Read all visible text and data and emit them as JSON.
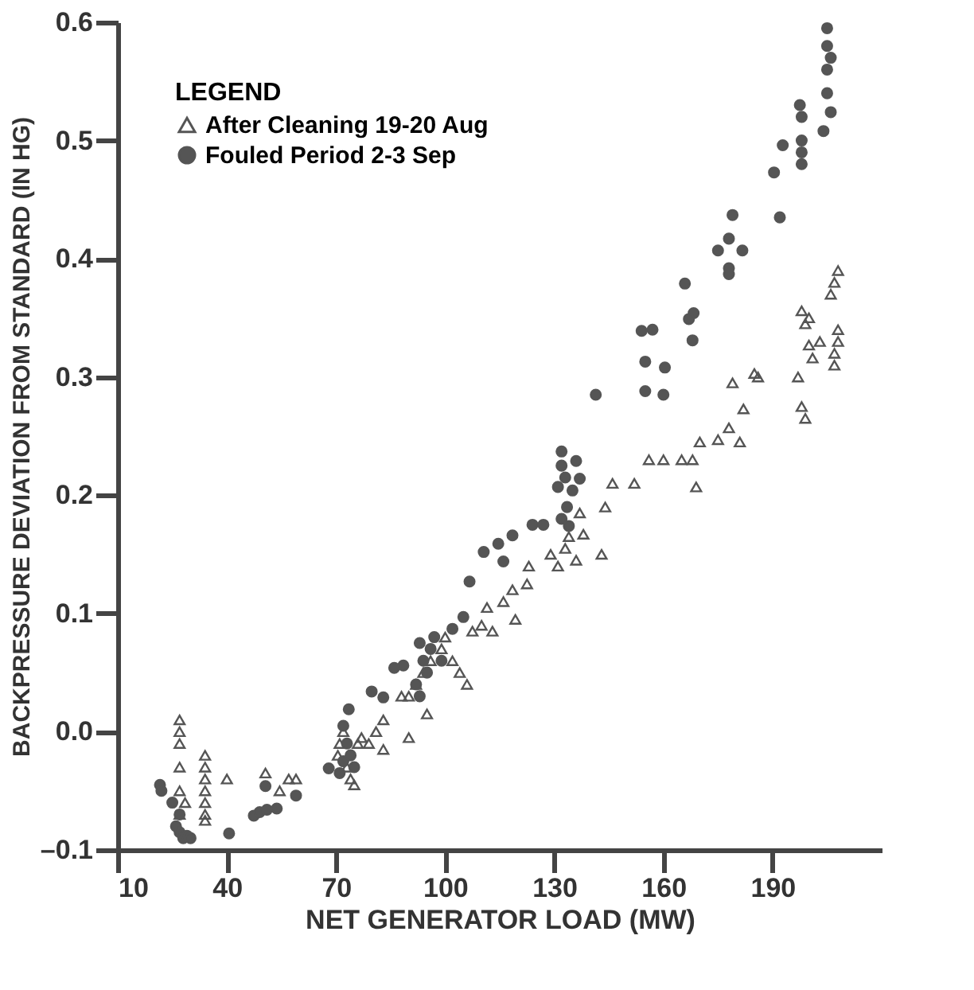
{
  "chart_data": {
    "type": "scatter",
    "xlabel": "NET GENERATOR LOAD (MW)",
    "ylabel": "BACKPRESSURE DEVIATION FROM STANDARD (IN HG)",
    "legend_title": "LEGEND",
    "xlim": [
      10,
      220
    ],
    "xticks": [
      10,
      40,
      70,
      100,
      130,
      160,
      190
    ],
    "ylim": [
      -0.1,
      0.6
    ],
    "yticks": [
      {
        "value": -0.1,
        "label": "–0.1"
      },
      {
        "value": 0,
        "label": "0.0"
      },
      {
        "value": 0.1,
        "label": "0.1"
      },
      {
        "value": 0.2,
        "label": "0.2"
      },
      {
        "value": 0.3,
        "label": "0.3"
      },
      {
        "value": 0.4,
        "label": "0.4"
      },
      {
        "value": 0.5,
        "label": "0.5"
      },
      {
        "value": 0.6,
        "label": "0.6"
      }
    ],
    "grid": false,
    "legend": "top left",
    "series": [
      {
        "name": "After Cleaning 19-20 Aug",
        "color": "#555555",
        "marker": "triangle",
        "x": [
          27,
          27,
          27,
          27,
          27,
          27,
          28.5,
          34,
          34,
          34,
          34,
          34,
          34,
          34,
          40,
          50.6,
          54.5,
          57,
          59,
          70.5,
          71,
          72,
          73,
          74,
          75,
          76,
          77,
          79,
          81,
          83,
          83,
          90,
          95,
          88,
          90,
          92,
          94,
          96,
          99,
          100,
          102,
          104,
          106,
          107.5,
          110,
          111.5,
          113,
          116,
          118.5,
          119.3,
          122.5,
          123,
          129,
          131,
          133,
          134,
          136,
          137,
          138,
          143,
          144,
          146,
          152,
          156,
          160,
          165,
          168,
          169,
          170,
          175,
          178,
          181,
          179,
          182,
          185,
          186,
          197,
          198,
          199,
          200,
          201,
          203,
          207,
          207,
          208,
          208,
          198,
          199,
          200,
          206,
          207,
          208
        ],
        "values": [
          0.01,
          0.0,
          -0.01,
          -0.03,
          -0.05,
          -0.07,
          -0.06,
          -0.02,
          -0.03,
          -0.04,
          -0.05,
          -0.06,
          -0.07,
          -0.075,
          -0.04,
          -0.035,
          -0.05,
          -0.04,
          -0.04,
          -0.02,
          -0.01,
          0.0,
          -0.03,
          -0.04,
          -0.045,
          -0.01,
          -0.005,
          -0.01,
          0.0,
          -0.015,
          0.01,
          -0.005,
          0.015,
          0.03,
          0.03,
          0.04,
          0.05,
          0.06,
          0.07,
          0.08,
          0.06,
          0.05,
          0.04,
          0.085,
          0.09,
          0.105,
          0.085,
          0.11,
          0.12,
          0.095,
          0.125,
          0.14,
          0.15,
          0.14,
          0.155,
          0.165,
          0.145,
          0.185,
          0.167,
          0.15,
          0.19,
          0.21,
          0.21,
          0.23,
          0.23,
          0.23,
          0.23,
          0.207,
          0.245,
          0.247,
          0.257,
          0.245,
          0.295,
          0.273,
          0.303,
          0.3,
          0.3,
          0.275,
          0.265,
          0.327,
          0.316,
          0.33,
          0.31,
          0.32,
          0.33,
          0.34,
          0.356,
          0.345,
          0.35,
          0.37,
          0.38,
          0.39
        ]
      },
      {
        "name": "Fouled Period 2-3 Sep",
        "color": "#555555",
        "marker": "circle",
        "x": [
          21.6,
          22,
          25,
          26,
          27,
          27,
          28,
          29,
          30,
          40.6,
          47.4,
          49,
          51,
          53.7,
          50.6,
          59,
          68,
          71,
          72,
          72,
          73,
          74,
          75,
          73.5,
          79.8,
          83,
          88.5,
          86,
          92,
          93,
          93,
          94,
          95,
          96,
          97,
          99,
          102,
          105,
          106.7,
          110.6,
          114.6,
          116,
          118.5,
          124,
          127,
          132,
          133.5,
          131,
          135,
          134,
          133,
          132,
          132,
          136,
          137,
          141.4,
          154,
          157,
          155,
          160.4,
          155,
          160,
          165.9,
          168.3,
          167,
          168,
          175,
          181.7,
          178,
          178,
          178,
          179,
          192,
          190.4,
          192.8,
          197.5,
          198,
          198,
          198,
          198,
          204,
          205,
          205,
          205,
          205,
          206,
          206
        ],
        "values": [
          -0.045,
          -0.05,
          -0.06,
          -0.08,
          -0.085,
          -0.07,
          -0.09,
          -0.088,
          -0.09,
          -0.086,
          -0.071,
          -0.068,
          -0.066,
          -0.065,
          -0.046,
          -0.054,
          -0.031,
          -0.035,
          -0.025,
          0.005,
          -0.01,
          -0.02,
          -0.03,
          0.019,
          0.034,
          0.029,
          0.056,
          0.054,
          0.04,
          0.03,
          0.075,
          0.06,
          0.05,
          0.07,
          0.08,
          0.06,
          0.087,
          0.097,
          0.127,
          0.152,
          0.159,
          0.144,
          0.166,
          0.175,
          0.175,
          0.18,
          0.19,
          0.207,
          0.204,
          0.174,
          0.215,
          0.225,
          0.237,
          0.229,
          0.214,
          0.285,
          0.339,
          0.34,
          0.313,
          0.308,
          0.288,
          0.285,
          0.379,
          0.354,
          0.349,
          0.331,
          0.407,
          0.407,
          0.417,
          0.392,
          0.387,
          0.437,
          0.435,
          0.473,
          0.496,
          0.53,
          0.52,
          0.5,
          0.49,
          0.48,
          0.508,
          0.595,
          0.58,
          0.56,
          0.54,
          0.524,
          0.57
        ]
      }
    ]
  }
}
